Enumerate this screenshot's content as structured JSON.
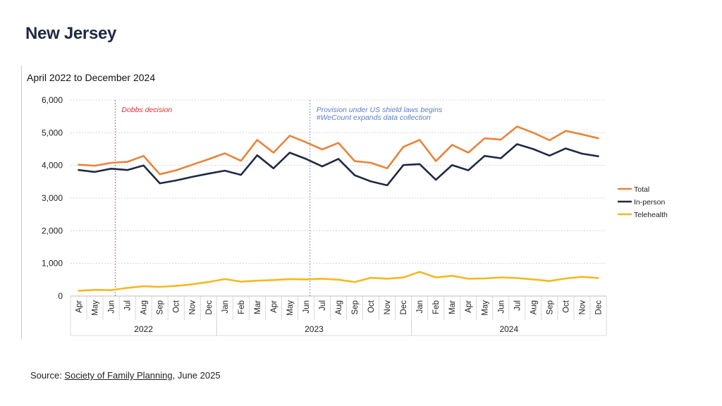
{
  "page": {
    "title": "New Jersey",
    "source_prefix": "Source: ",
    "source_link": "Society of Family Planning",
    "source_suffix": ", June 2025"
  },
  "chart_data": {
    "type": "line",
    "title": "April 2022 to December 2024",
    "xlabel": "",
    "ylabel": "",
    "ylim": [
      0,
      6000
    ],
    "yticks": [
      0,
      1000,
      2000,
      3000,
      4000,
      5000,
      6000
    ],
    "ytick_labels": [
      "0",
      "1,000",
      "2,000",
      "3,000",
      "4,000",
      "5,000",
      "6,000"
    ],
    "grid": true,
    "legend_position": "right",
    "categories": [
      "Apr",
      "May",
      "Jun",
      "Jul",
      "Aug",
      "Sep",
      "Oct",
      "Nov",
      "Dec",
      "Jan",
      "Feb",
      "Mar",
      "Apr",
      "May",
      "Jun",
      "Jul",
      "Aug",
      "Sep",
      "Oct",
      "Nov",
      "Dec",
      "Jan",
      "Feb",
      "Mar",
      "Apr",
      "May",
      "Jun",
      "Jul",
      "Aug",
      "Sep",
      "Oct",
      "Nov",
      "Dec"
    ],
    "year_groups": [
      {
        "label": "2022",
        "start": 0,
        "end": 8
      },
      {
        "label": "2023",
        "start": 9,
        "end": 20
      },
      {
        "label": "2024",
        "start": 21,
        "end": 32
      }
    ],
    "series": [
      {
        "name": "Total",
        "color": "#e8843a",
        "values": [
          4020,
          3990,
          4080,
          4110,
          4290,
          3730,
          3850,
          4020,
          4190,
          4370,
          4140,
          4780,
          4390,
          4910,
          4710,
          4490,
          4690,
          4130,
          4080,
          3910,
          4570,
          4780,
          4130,
          4630,
          4390,
          4830,
          4790,
          5190,
          5000,
          4770,
          5060,
          4950,
          4830
        ]
      },
      {
        "name": "In-person",
        "color": "#1e2a44",
        "values": [
          3860,
          3800,
          3900,
          3860,
          4000,
          3450,
          3540,
          3650,
          3750,
          3840,
          3710,
          4310,
          3910,
          4390,
          4200,
          3970,
          4200,
          3700,
          3510,
          3390,
          4010,
          4040,
          3560,
          4010,
          3850,
          4290,
          4220,
          4650,
          4500,
          4300,
          4520,
          4360,
          4280
        ]
      },
      {
        "name": "Telehealth",
        "color": "#f5b820",
        "values": [
          160,
          190,
          180,
          250,
          300,
          280,
          310,
          360,
          430,
          520,
          440,
          470,
          490,
          520,
          510,
          530,
          500,
          430,
          560,
          530,
          570,
          740,
          570,
          620,
          530,
          540,
          570,
          550,
          510,
          460,
          540,
          590,
          550
        ]
      }
    ],
    "annotations": [
      {
        "index": 2,
        "label": "Dobbs decision",
        "color": "#e03030"
      },
      {
        "index": 14,
        "label": "Provision under US shield laws begins",
        "label2": "#WeCount expands data collection",
        "color": "#5a7fbf"
      }
    ]
  }
}
